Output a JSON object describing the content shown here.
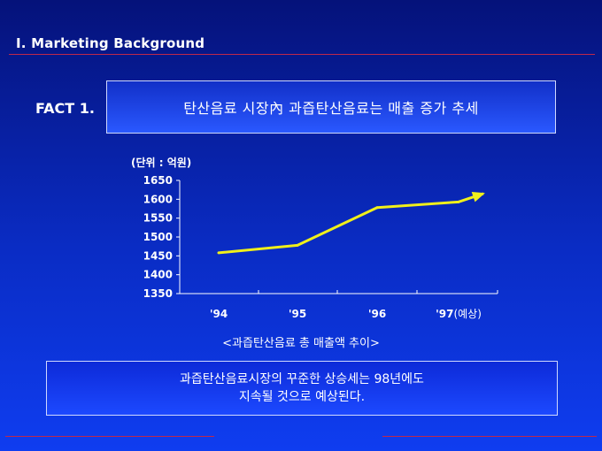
{
  "slide": {
    "section_title": "Ⅰ. Marketing Background",
    "fact_label": "FACT 1.",
    "fact_text": "탄산음료 시장內 과즙탄산음료는 매출 증가 추세",
    "unit_label": "(단위 : 억원)",
    "caption": "<과즙탄산음료 총 매출액 추이>",
    "conclusion_line1": "과즙탄산음료시장의 꾸준한 상승세는 98년에도",
    "conclusion_line2": "지속될 것으로 예상된다."
  },
  "colors": {
    "line": "#f0f01a",
    "axis": "#ffffff",
    "rule": "#c0284a"
  },
  "chart_data": {
    "type": "line",
    "categories": [
      "'94",
      "'95",
      "'96",
      "'97"
    ],
    "category_notes": [
      "",
      "",
      "",
      "(예상)"
    ],
    "values": [
      1458,
      1478,
      1578,
      1593
    ],
    "arrow_end_value": 1615,
    "yticks": [
      1350,
      1400,
      1450,
      1500,
      1550,
      1600,
      1650
    ],
    "ylim": [
      1350,
      1650
    ],
    "title": "",
    "xlabel": "",
    "ylabel": "",
    "grid": false,
    "legend": "none"
  }
}
